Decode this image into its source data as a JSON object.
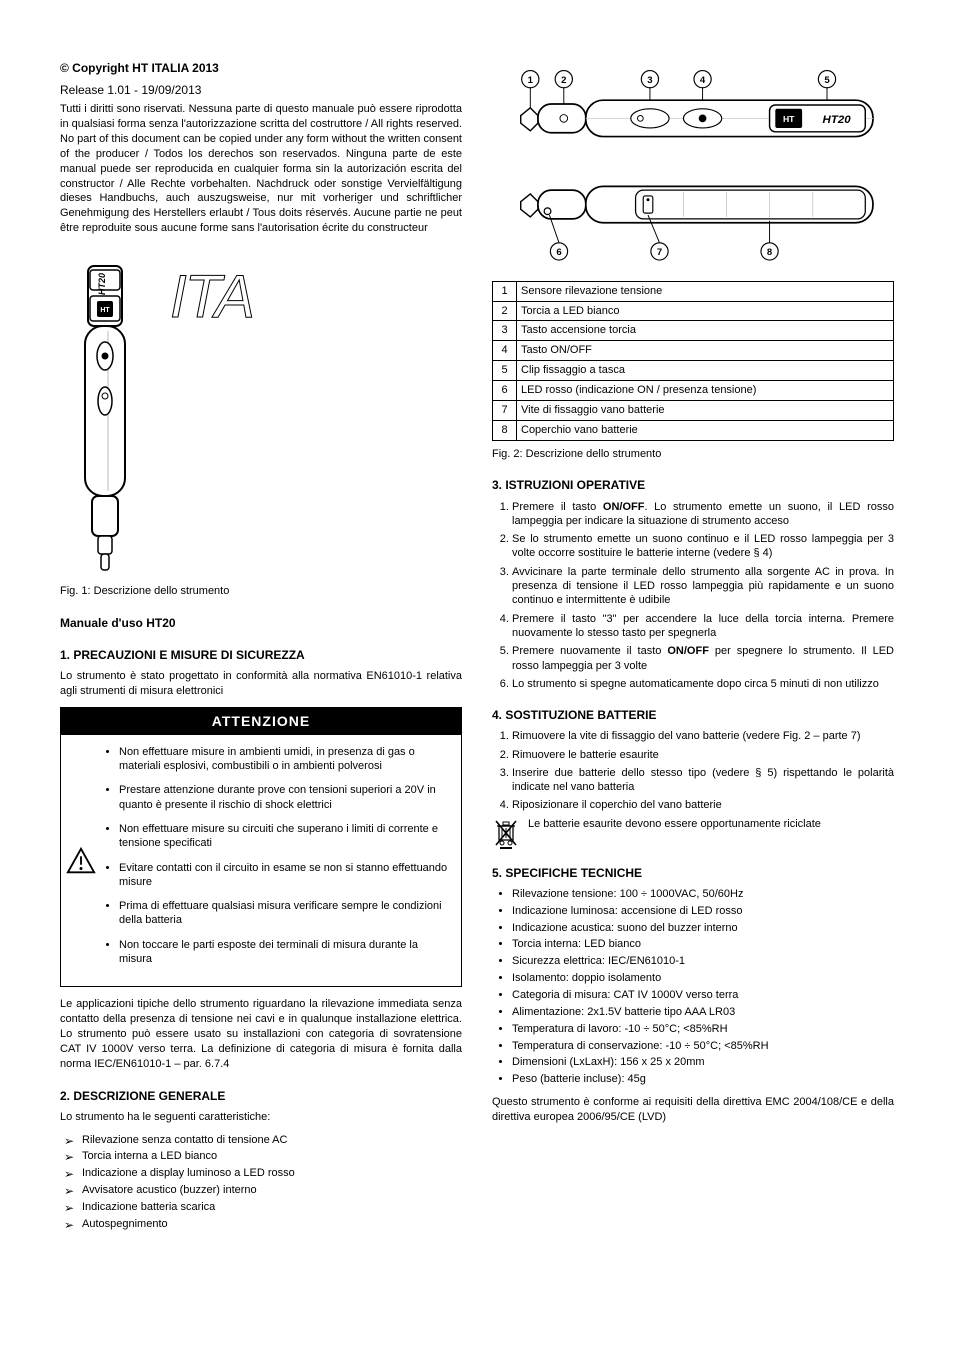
{
  "copyright": {
    "title": "© Copyright HT ITALIA 2013",
    "release": "Release 1.01 - 19/09/2013",
    "body": "Tutti i diritti sono riservati. Nessuna parte di questo manuale può essere riprodotta in qualsiasi forma senza l'autorizzazione scritta del costruttore / All rights reserved. No part of this document can be copied under any form without the written consent of the producer / Todos los derechos son reservados. Ninguna parte de este manual puede ser reproducida en cualquier forma sin la autorización escrita del constructor / Alle Rechte vorbehalten. Nachdruck oder sonstige Vervielfältigung dieses Handbuchs, auch auszugsweise, nur mit vorheriger und schriftlicher Genehmigung des Herstellers erlaubt / Tous doits réservés. Aucune partie ne peut être reproduite sous aucune forme sans l'autorisation écrite du constructeur",
    "fig1_caption": "Fig. 1: Descrizione dello strumento"
  },
  "manual_title": "Manuale d'uso HT20",
  "sec1": {
    "heading": "1. PRECAUZIONI E MISURE DI SICUREZZA",
    "intro": "Lo strumento è stato progettato in conformità alla normativa EN61010-1 relativa agli strumenti di misura elettronici",
    "caution_label": "ATTENZIONE",
    "items": [
      "Non effettuare misure in ambienti umidi, in presenza di gas o materiali esplosivi, combustibili o in ambienti polverosi",
      "Prestare attenzione durante prove con tensioni superiori a 20V in quanto è presente il rischio di shock elettrici",
      "Non effettuare misure su circuiti che superano i limiti di corrente e tensione specificati",
      "Evitare contatti con il circuito in esame se non si stanno effettuando misure",
      "Prima di effettuare qualsiasi misura verificare sempre le condizioni della batteria",
      "Non toccare le parti esposte dei terminali di misura durante la misura"
    ],
    "applications_text": "Le applicazioni tipiche dello strumento riguardano la rilevazione immediata senza contatto della presenza di tensione nei cavi e in qualunque installazione elettrica. Lo strumento può essere usato su installazioni con categoria di sovratensione CAT IV 1000V verso terra. La definizione di categoria di misura è fornita dalla norma IEC/EN61010-1 – par. 6.7.4"
  },
  "sec2": {
    "heading": "2. DESCRIZIONE GENERALE",
    "intro": "Lo strumento ha le seguenti caratteristiche:",
    "features": [
      "Rilevazione senza contatto di tensione AC",
      "Torcia interna a LED bianco",
      "Indicazione a display luminoso a LED rosso",
      "Avvisatore acustico (buzzer) interno",
      "Indicazione batteria scarica",
      "Autospegnimento"
    ],
    "fig2_caption": "Fig. 2: Descrizione dello strumento"
  },
  "parts_table": {
    "rows": [
      {
        "n": "1",
        "t": "Sensore rilevazione tensione"
      },
      {
        "n": "2",
        "t": "Torcia a LED bianco"
      },
      {
        "n": "3",
        "t": "Tasto accensione torcia"
      },
      {
        "n": "4",
        "t": "Tasto ON/OFF"
      },
      {
        "n": "5",
        "t": "Clip fissaggio a tasca"
      },
      {
        "n": "6",
        "t": "LED rosso (indicazione ON / presenza tensione)"
      },
      {
        "n": "7",
        "t": "Vite di fissaggio vano batterie"
      },
      {
        "n": "8",
        "t": "Coperchio vano batterie"
      }
    ]
  },
  "sec3": {
    "heading": "3. ISTRUZIONI OPERATIVE",
    "items": [
      "Premere il tasto <strong>ON/OFF</strong>. Lo strumento emette un suono, il LED rosso lampeggia per indicare la situazione di strumento acceso",
      "Se lo strumento emette un suono continuo e il LED rosso lampeggia per 3 volte occorre sostituire le batterie interne (vedere § 4)",
      "Avvicinare la parte terminale dello strumento alla sorgente AC in prova. In presenza di tensione il LED rosso lampeggia più rapidamente e un suono continuo e intermittente è udibile",
      "Premere il tasto \"3\" per accendere la luce della torcia interna. Premere nuovamente lo stesso tasto per spegnerla",
      "Premere nuovamente il tasto <strong>ON/OFF</strong> per spegnere lo strumento. Il LED rosso lampeggia per 3 volte",
      "Lo strumento si spegne automaticamente dopo circa 5 minuti di non utilizzo"
    ]
  },
  "sec4": {
    "heading": "4. SOSTITUZIONE BATTERIE",
    "items": [
      "Rimuovere la vite di fissaggio del vano batterie (vedere Fig. 2 – parte 7)",
      "Rimuovere le batterie esaurite",
      "Inserire due batterie dello stesso tipo (vedere § 5) rispettando le polarità indicate nel vano batteria",
      "Riposizionare il coperchio del vano batterie"
    ],
    "weee_text": "Le batterie esaurite devono essere opportunamente riciclate"
  },
  "sec5": {
    "heading": "5. SPECIFICHE TECNICHE",
    "items": [
      "Rilevazione tensione: 100 ÷ 1000VAC, 50/60Hz",
      "Indicazione luminosa: accensione di LED rosso",
      "Indicazione acustica: suono del buzzer interno",
      "Torcia interna: LED bianco",
      "Sicurezza elettrica: IEC/EN61010-1",
      "Isolamento: doppio isolamento",
      "Categoria di misura: CAT IV 1000V verso terra",
      "Alimentazione: 2x1.5V batterie tipo AAA LR03",
      "Temperatura di lavoro: -10 ÷ 50°C; <85%RH",
      "Temperatura di conservazione: -10 ÷ 50°C; <85%RH",
      "Dimensioni (LxLaxH): 156 x 25 x 20mm",
      "Peso (batterie incluse): 45g"
    ],
    "footer": "Questo strumento è conforme ai requisiti della direttiva EMC 2004/108/CE e della direttiva europea 2006/95/CE (LVD)"
  },
  "diagram": {
    "callouts": [
      "1",
      "2",
      "3",
      "4",
      "5",
      "6",
      "7",
      "8"
    ],
    "brand": "HT",
    "model": "HT20"
  },
  "colors": {
    "text": "#000000",
    "bg": "#ffffff",
    "banner_bg": "#000000",
    "banner_fg": "#ffffff"
  }
}
